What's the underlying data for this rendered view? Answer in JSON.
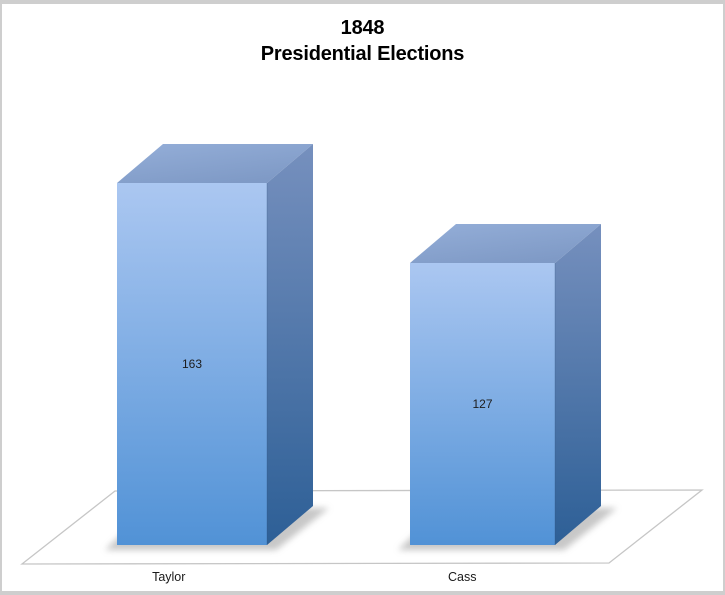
{
  "window": {
    "background": "#ffffff",
    "frame_border_color": "#cecece"
  },
  "chart_data": {
    "type": "bar",
    "style": "3d-column",
    "title": "1848 Presidential Elections",
    "title_line1": "1848",
    "title_line2": "Presidential Elections",
    "categories": [
      "Taylor",
      "Cass"
    ],
    "values": [
      163,
      127
    ],
    "data_labels": [
      "163",
      "127"
    ],
    "xlabel": "",
    "ylabel": "",
    "axes_shown": false,
    "gridlines": false,
    "legend": "none",
    "colors": {
      "front_face_top": "#abc7f1",
      "front_face_bottom": "#5192d6",
      "top_face_front": "#94aed8",
      "top_face_back": "#7f9ac6",
      "side_face_top": "#7690be",
      "side_face_bottom": "#2d5f96",
      "edge_line": "#2f527e",
      "floor_stroke": "#c6c6c6",
      "floor_fill": "#ffffff",
      "shadow": "#909090",
      "value_label": "#1c1c1c",
      "category_label": "#1a1a1a",
      "title": "#000000"
    }
  }
}
